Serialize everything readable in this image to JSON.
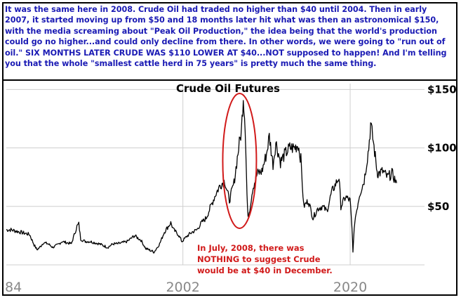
{
  "caption": "It was the same here in 2008. Crude Oil had traded no higher than $40 until 2004. Then in early 2007, it started moving up from $50 and 18 months later hit what was then an astronomical $150, with the media screaming about \"Peak Oil Production,\" the idea being that the world's production could go no higher...and could only decline from there. In other words, we were going to \"run out of oil.\" SIX MONTHS LATER CRUDE WAS $110 LOWER AT $40...NOT supposed to happen! And I'm telling you that the whole \"smallest cattle herd in 75 years\" is pretty much the same thing.",
  "colors": {
    "caption": "#1a1ab4",
    "annotation": "#d11a1a",
    "highlight": "#d11a1a",
    "series": "#000000",
    "grid": "#cfcfcf"
  },
  "chart_data": {
    "type": "line",
    "title": "Crude Oil Futures",
    "xlabel": "",
    "ylabel": "",
    "x_ticks": [
      "84",
      "2002",
      "2020"
    ],
    "y_ticks": [
      "$50",
      "$100",
      "$150"
    ],
    "xlim": [
      1983,
      2028
    ],
    "ylim": [
      0,
      155
    ],
    "grid": true,
    "series": [
      {
        "name": "",
        "x": [
          1983.0,
          1983.5,
          1984.0,
          1984.5,
          1985.0,
          1985.5,
          1986.0,
          1986.3,
          1986.6,
          1987.0,
          1987.5,
          1988.0,
          1988.5,
          1989.0,
          1989.5,
          1990.0,
          1990.6,
          1990.8,
          1991.0,
          1991.5,
          1992.0,
          1993.0,
          1993.9,
          1994.5,
          1995.0,
          1996.0,
          1996.8,
          1997.5,
          1998.0,
          1998.9,
          1999.5,
          2000.0,
          2000.7,
          2001.0,
          2001.5,
          2001.9,
          2002.5,
          2003.0,
          2003.5,
          2004.0,
          2004.5,
          2005.0,
          2005.5,
          2006.0,
          2006.5,
          2007.0,
          2007.5,
          2008.0,
          2008.3,
          2008.5,
          2008.7,
          2008.9,
          2009.0,
          2009.2,
          2009.5,
          2010.0,
          2010.5,
          2011.0,
          2011.3,
          2011.7,
          2012.0,
          2012.5,
          2013.0,
          2013.5,
          2014.0,
          2014.4,
          2014.7,
          2015.0,
          2015.5,
          2016.0,
          2016.5,
          2017.0,
          2017.5,
          2018.0,
          2018.8,
          2019.0,
          2019.5,
          2020.0,
          2020.2,
          2020.3,
          2020.5,
          2021.0,
          2021.5,
          2022.0,
          2022.2,
          2022.5,
          2022.9,
          2023.0,
          2023.5,
          2024.0,
          2024.5,
          2025.0
        ],
        "values": [
          30,
          30,
          29,
          28,
          27,
          26,
          17,
          13,
          15,
          19,
          18,
          15,
          17,
          20,
          19,
          18,
          33,
          35,
          22,
          20,
          20,
          18,
          15,
          18,
          18,
          20,
          25,
          21,
          14,
          11,
          18,
          28,
          36,
          30,
          26,
          20,
          25,
          28,
          30,
          36,
          40,
          50,
          60,
          68,
          72,
          55,
          70,
          100,
          115,
          145,
          120,
          60,
          40,
          48,
          65,
          78,
          80,
          95,
          110,
          86,
          105,
          88,
          95,
          100,
          100,
          103,
          90,
          50,
          55,
          40,
          48,
          50,
          46,
          62,
          75,
          50,
          58,
          55,
          30,
          12,
          38,
          60,
          72,
          100,
          120,
          105,
          80,
          78,
          80,
          75,
          78,
          70
        ]
      }
    ],
    "annotations": [
      "In July, 2008, there was",
      "NOTHING to suggest Crude",
      "would be at $40 in December."
    ]
  }
}
